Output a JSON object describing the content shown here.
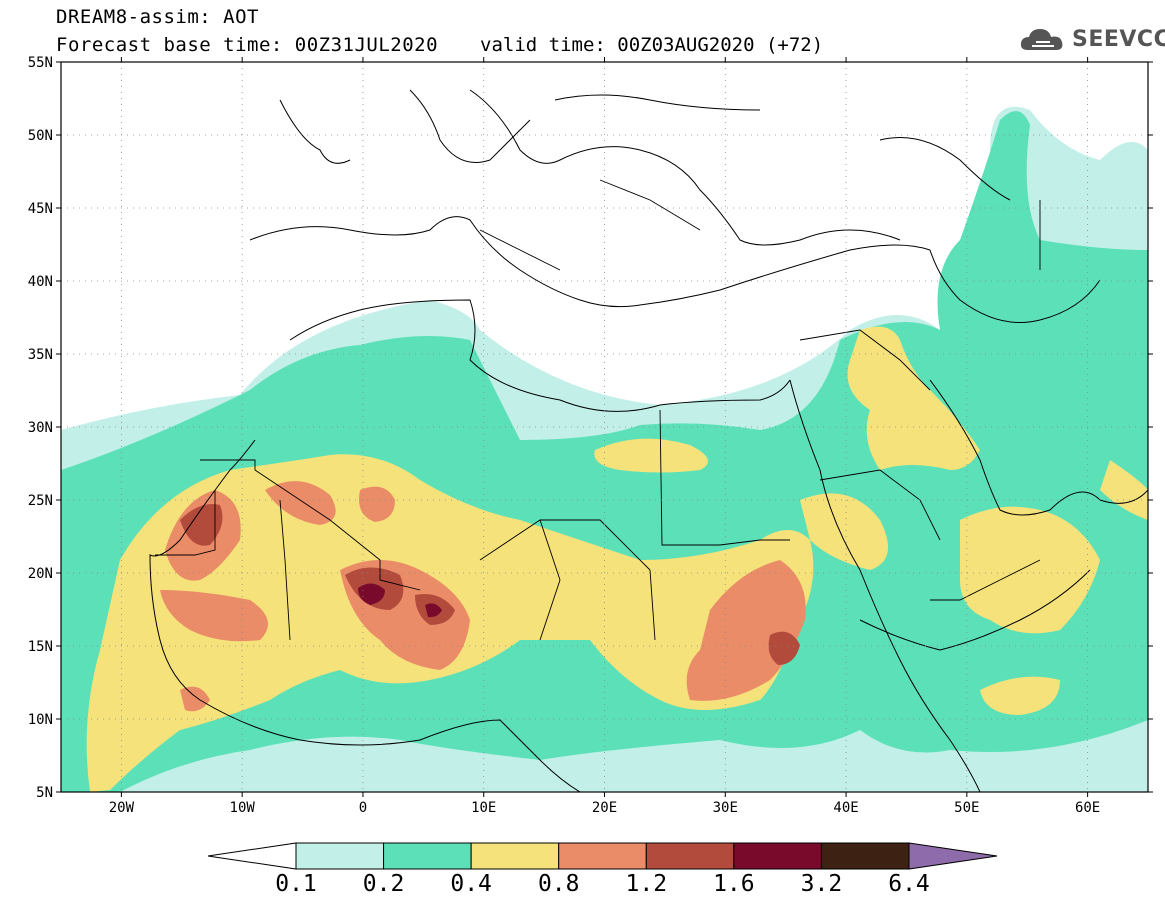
{
  "title": {
    "line1": "DREAM8-assim: AOT",
    "line2": "Forecast base time: 00Z31JUL2020",
    "valid": "valid time: 00Z03AUG2020 (+72)"
  },
  "logo": {
    "text": "SEEVCCC",
    "icon": "cloud-icon"
  },
  "map": {
    "lon_range": [
      -25,
      65
    ],
    "lat_range": [
      5,
      55
    ],
    "lat_ticks": [
      {
        "value": 55,
        "label": "55N"
      },
      {
        "value": 50,
        "label": "50N"
      },
      {
        "value": 45,
        "label": "45N"
      },
      {
        "value": 40,
        "label": "40N"
      },
      {
        "value": 35,
        "label": "35N"
      },
      {
        "value": 30,
        "label": "30N"
      },
      {
        "value": 25,
        "label": "25N"
      },
      {
        "value": 20,
        "label": "20N"
      },
      {
        "value": 15,
        "label": "15N"
      },
      {
        "value": 10,
        "label": "10N"
      },
      {
        "value": 5,
        "label": "5N"
      }
    ],
    "lon_ticks": [
      {
        "value": -20,
        "label": "20W"
      },
      {
        "value": -10,
        "label": "10W"
      },
      {
        "value": 0,
        "label": "0"
      },
      {
        "value": 10,
        "label": "10E"
      },
      {
        "value": 20,
        "label": "20E"
      },
      {
        "value": 30,
        "label": "30E"
      },
      {
        "value": 40,
        "label": "40E"
      },
      {
        "value": 50,
        "label": "50E"
      },
      {
        "value": 60,
        "label": "60E"
      }
    ],
    "grid": "dotted"
  },
  "colorbar": {
    "levels": [
      "0.1",
      "0.2",
      "0.4",
      "0.8",
      "1.2",
      "1.6",
      "3.2",
      "6.4"
    ],
    "colors": [
      "#ffffff",
      "#c2f0e9",
      "#5ce0b8",
      "#f5e27a",
      "#ea8c68",
      "#b34b3d",
      "#7a0a2c",
      "#3d2213",
      "#8e6cab"
    ]
  }
}
